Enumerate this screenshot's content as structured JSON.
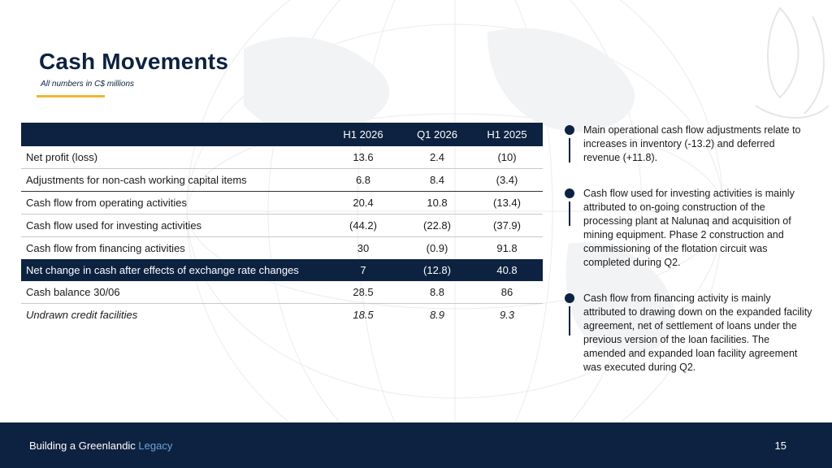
{
  "slide": {
    "title": "Cash Movements",
    "subtitle": "All numbers in C$ millions"
  },
  "table": {
    "columns": [
      "",
      "H1 2026",
      "Q1 2026",
      "H1 2025"
    ],
    "rows": [
      {
        "label": "Net profit (loss)",
        "values": [
          "13.6",
          "2.4",
          "(10)"
        ]
      },
      {
        "label": "Adjustments for non-cash working capital items",
        "values": [
          "6.8",
          "8.4",
          "(3.4)"
        ]
      },
      {
        "label": "Cash flow from operating activities",
        "values": [
          "20.4",
          "10.8",
          "(13.4)"
        ]
      },
      {
        "label": "Cash flow used for investing activities",
        "values": [
          "(44.2)",
          "(22.8)",
          "(37.9)"
        ]
      },
      {
        "label": "Cash flow from financing activities",
        "values": [
          "30",
          "(0.9)",
          "91.8"
        ]
      },
      {
        "label": "Net change in cash after effects of exchange rate changes",
        "values": [
          "7",
          "(12.8)",
          "40.8"
        ]
      },
      {
        "label": "Cash balance 30/06",
        "values": [
          "28.5",
          "8.8",
          "86"
        ]
      },
      {
        "label": "Undrawn credit facilities",
        "values": [
          "18.5",
          "8.9",
          "9.3"
        ]
      }
    ]
  },
  "notes": [
    "Main operational cash flow adjustments relate to increases in inventory (-13.2) and deferred revenue (+11.8).",
    "Cash flow used for investing activities is mainly attributed to on-going construction of the processing plant at Nalunaq and acquisition of mining equipment. Phase 2 construction and commissioning of the flotation circuit was completed during Q2.",
    "Cash flow from financing activity is mainly attributed to drawing down on the expanded facility agreement, net of settlement of loans under the previous version of the loan facilities.  The amended and expanded loan facility agreement was executed during Q2."
  ],
  "footer": {
    "text_prefix": "Building a Greenlandic ",
    "text_accent": "Legacy",
    "page_number": "15"
  },
  "colors": {
    "navy": "#0d2240",
    "accent_gold": "#f2b632",
    "accent_blue": "#6aa3d8"
  }
}
